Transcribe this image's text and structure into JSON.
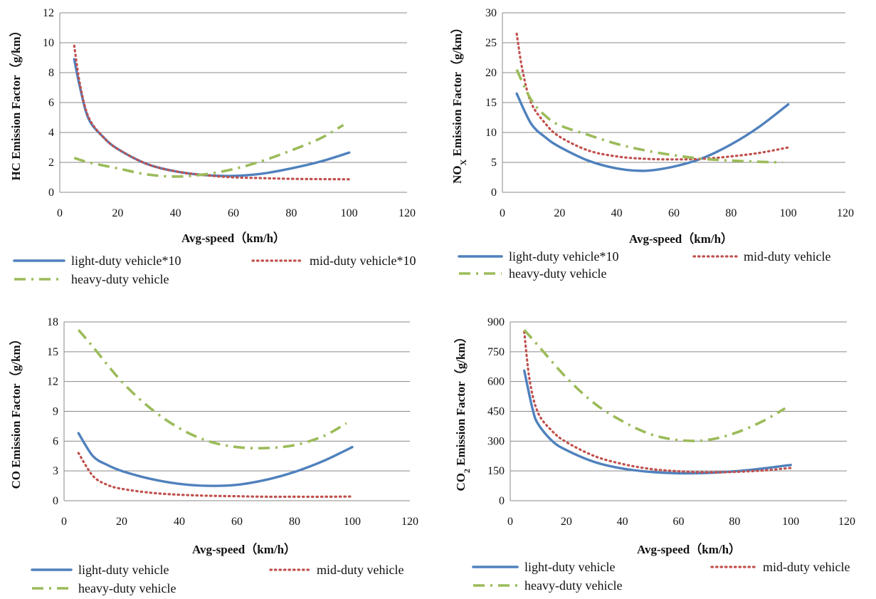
{
  "chart_data": [
    {
      "type": "line",
      "ylabel": "HC Emission Factor（g/km）",
      "xlabel": "Avg-speed（km/h）",
      "xlim": [
        0,
        120
      ],
      "xticks": [
        "0",
        "20",
        "40",
        "60",
        "80",
        "100",
        "120"
      ],
      "ylim": [
        0,
        12
      ],
      "yticks": [
        "0",
        "2",
        "4",
        "6",
        "8",
        "10",
        "12"
      ],
      "grid": "horizontal",
      "legend_position": "bottom",
      "series": [
        {
          "name": "light-duty vehicle*10",
          "style": "solid",
          "color": "#4f81bd",
          "x": [
            5,
            7,
            10,
            15,
            20,
            30,
            40,
            50,
            60,
            70,
            80,
            90,
            100
          ],
          "y": [
            8.9,
            7.0,
            4.9,
            3.7,
            2.9,
            1.9,
            1.4,
            1.15,
            1.1,
            1.25,
            1.6,
            2.05,
            2.65
          ]
        },
        {
          "name": "mid-duty vehicle*10",
          "style": "dotted",
          "color": "#c0504d",
          "x": [
            5,
            7,
            10,
            15,
            20,
            30,
            40,
            50,
            60,
            70,
            80,
            90,
            100
          ],
          "y": [
            9.8,
            7.2,
            5.0,
            3.7,
            2.9,
            1.9,
            1.4,
            1.15,
            1.0,
            0.95,
            0.9,
            0.88,
            0.87
          ]
        },
        {
          "name": "heavy-duty vehicle",
          "style": "dashdot",
          "color": "#9bbb59",
          "x": [
            5,
            10,
            20,
            30,
            40,
            50,
            60,
            70,
            80,
            90,
            98
          ],
          "y": [
            2.3,
            2.0,
            1.6,
            1.2,
            1.05,
            1.2,
            1.55,
            2.1,
            2.8,
            3.6,
            4.5
          ]
        }
      ]
    },
    {
      "type": "line",
      "ylabel": "NOX Emission Factor（g/km）",
      "xlabel": "Avg-speed（km/h）",
      "xlim": [
        0,
        120
      ],
      "xticks": [
        "0",
        "20",
        "40",
        "60",
        "80",
        "100",
        "120"
      ],
      "ylim": [
        0,
        30
      ],
      "yticks": [
        "0",
        "5",
        "10",
        "15",
        "20",
        "25",
        "30"
      ],
      "grid": "horizontal",
      "legend_position": "bottom",
      "series": [
        {
          "name": "light-duty vehicle*10",
          "style": "solid",
          "color": "#4f81bd",
          "x": [
            5,
            10,
            15,
            20,
            30,
            40,
            50,
            60,
            70,
            80,
            90,
            100
          ],
          "y": [
            16.5,
            11.5,
            9.2,
            7.6,
            5.3,
            4.0,
            3.6,
            4.3,
            5.7,
            8.0,
            11.0,
            14.7
          ]
        },
        {
          "name": "mid-duty vehicle",
          "style": "dotted",
          "color": "#c0504d",
          "x": [
            5,
            7,
            10,
            15,
            20,
            30,
            40,
            50,
            60,
            70,
            80,
            90,
            100
          ],
          "y": [
            26.5,
            20.5,
            15.0,
            11.5,
            9.3,
            7.0,
            6.0,
            5.6,
            5.5,
            5.6,
            6.0,
            6.6,
            7.5
          ]
        },
        {
          "name": "heavy-duty vehicle",
          "style": "dashdot",
          "color": "#9bbb59",
          "x": [
            5,
            10,
            15,
            20,
            30,
            40,
            50,
            60,
            70,
            80,
            90,
            98
          ],
          "y": [
            20.5,
            15.5,
            12.8,
            11.2,
            9.6,
            8.1,
            7.0,
            6.2,
            5.6,
            5.3,
            5.1,
            5.0
          ]
        }
      ]
    },
    {
      "type": "line",
      "ylabel": "CO Emission Factor（g/km）",
      "xlabel": "Avg-speed（km/h）",
      "xlim": [
        0,
        120
      ],
      "xticks": [
        "0",
        "20",
        "40",
        "60",
        "80",
        "100",
        "120"
      ],
      "ylim": [
        0,
        18
      ],
      "yticks": [
        "0",
        "3",
        "6",
        "9",
        "12",
        "15",
        "18"
      ],
      "grid": "horizontal",
      "legend_position": "bottom",
      "series": [
        {
          "name": "light-duty vehicle",
          "style": "solid",
          "color": "#4f81bd",
          "x": [
            5,
            10,
            15,
            20,
            30,
            40,
            50,
            60,
            70,
            80,
            90,
            100
          ],
          "y": [
            6.8,
            4.5,
            3.6,
            3.0,
            2.2,
            1.7,
            1.5,
            1.6,
            2.1,
            2.9,
            4.0,
            5.4
          ]
        },
        {
          "name": "mid-duty vehicle",
          "style": "dotted",
          "color": "#c0504d",
          "x": [
            5,
            10,
            15,
            20,
            30,
            40,
            50,
            60,
            70,
            80,
            90,
            100
          ],
          "y": [
            4.8,
            2.5,
            1.6,
            1.2,
            0.8,
            0.6,
            0.5,
            0.45,
            0.4,
            0.4,
            0.4,
            0.42
          ]
        },
        {
          "name": "heavy-duty vehicle",
          "style": "dashdot",
          "color": "#9bbb59",
          "x": [
            5,
            10,
            20,
            30,
            40,
            50,
            60,
            70,
            80,
            90,
            98
          ],
          "y": [
            17.2,
            15.5,
            12.0,
            9.3,
            7.3,
            6.0,
            5.4,
            5.3,
            5.6,
            6.5,
            7.8
          ]
        }
      ]
    },
    {
      "type": "line",
      "ylabel": "CO2 Emission Factor（g/km）",
      "xlabel": "Avg-speed（km/h）",
      "xlim": [
        0,
        120
      ],
      "xticks": [
        "0",
        "20",
        "40",
        "60",
        "80",
        "100",
        "120"
      ],
      "ylim": [
        0,
        900
      ],
      "yticks": [
        "0",
        "150",
        "300",
        "450",
        "600",
        "750",
        "900"
      ],
      "grid": "horizontal",
      "legend_position": "bottom",
      "series": [
        {
          "name": "light-duty vehicle",
          "style": "solid",
          "color": "#4f81bd",
          "x": [
            5,
            8,
            10,
            15,
            20,
            30,
            40,
            50,
            60,
            70,
            80,
            90,
            100
          ],
          "y": [
            655,
            460,
            385,
            300,
            255,
            195,
            162,
            145,
            138,
            140,
            148,
            162,
            180
          ]
        },
        {
          "name": "mid-duty vehicle",
          "style": "dotted",
          "color": "#c0504d",
          "x": [
            5,
            7,
            10,
            15,
            20,
            30,
            40,
            50,
            60,
            70,
            80,
            90,
            100
          ],
          "y": [
            850,
            600,
            440,
            350,
            295,
            225,
            185,
            160,
            148,
            143,
            145,
            152,
            165
          ]
        },
        {
          "name": "heavy-duty vehicle",
          "style": "dashdot",
          "color": "#9bbb59",
          "x": [
            5,
            10,
            20,
            30,
            40,
            50,
            60,
            70,
            80,
            90,
            98
          ],
          "y": [
            860,
            780,
            620,
            490,
            400,
            335,
            305,
            305,
            340,
            400,
            465
          ]
        }
      ]
    }
  ]
}
